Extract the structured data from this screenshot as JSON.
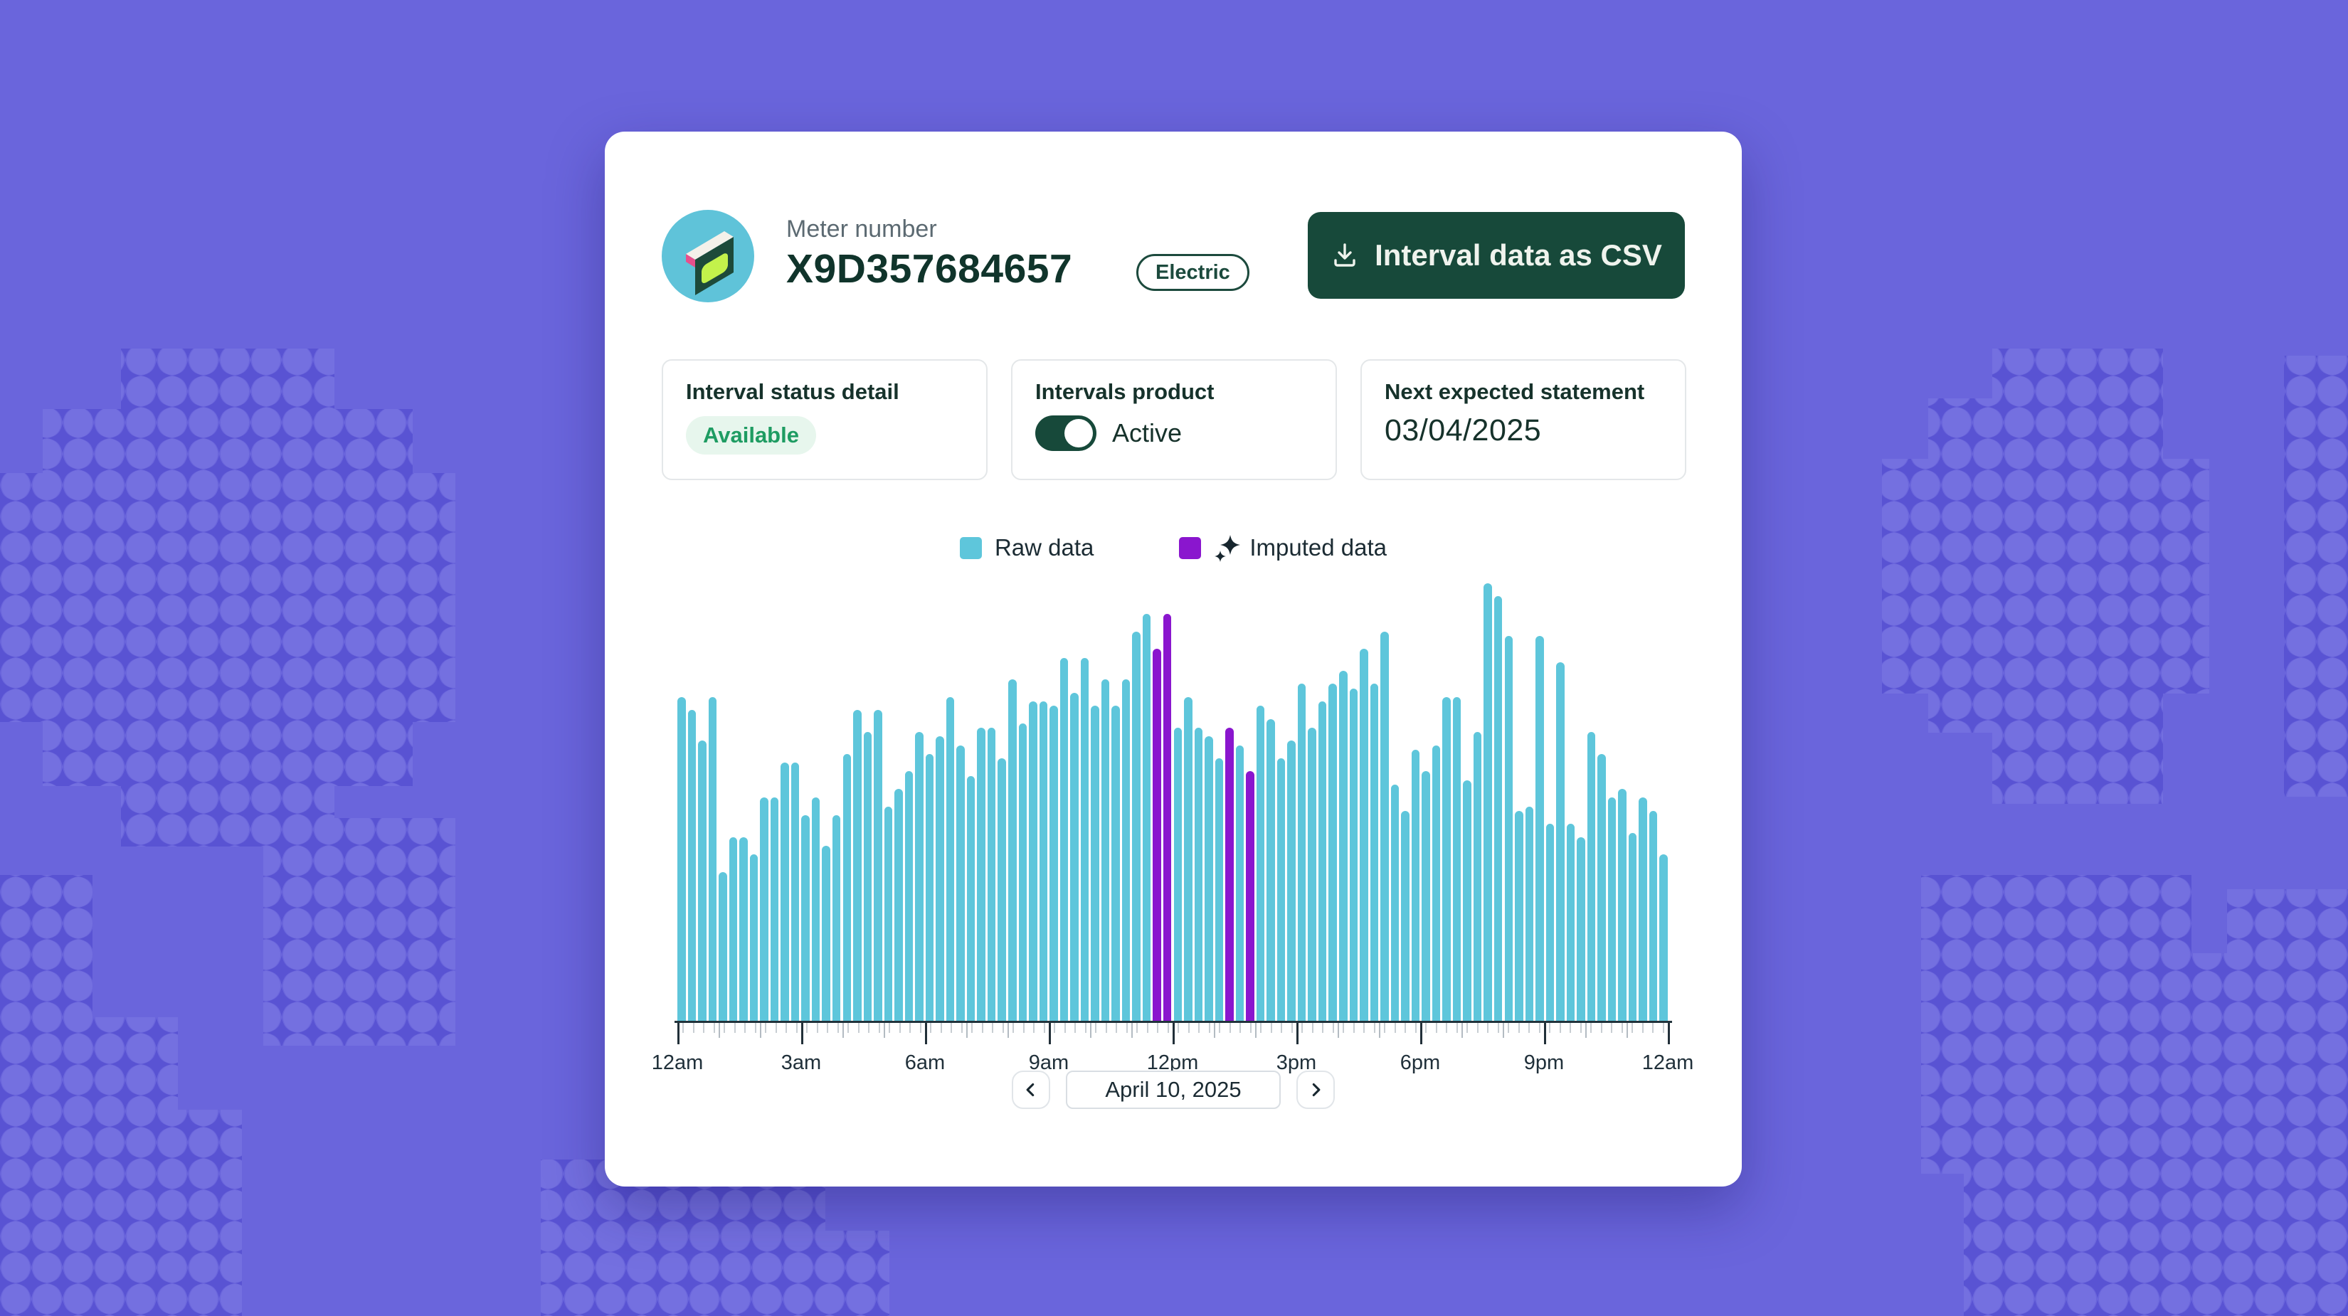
{
  "header": {
    "label": "Meter number",
    "meter_number": "X9D357684657",
    "badge": "Electric",
    "download_button": "Interval data as CSV"
  },
  "info_cards": {
    "status": {
      "title": "Interval status detail",
      "value": "Available"
    },
    "product": {
      "title": "Intervals product",
      "value": "Active",
      "toggle_state": "on"
    },
    "statement": {
      "title": "Next expected statement",
      "value": "03/04/2025"
    }
  },
  "legend": {
    "raw": "Raw data",
    "imputed": "Imputed data"
  },
  "nav": {
    "date": "April 10, 2025"
  },
  "colors": {
    "background": "#6A65DC",
    "raw": "#5EC6DB",
    "imputed": "#8A16CE",
    "accent_green": "#17493A",
    "status_green": "#1E9C62"
  },
  "chart_data": {
    "type": "bar",
    "title": "",
    "xlabel": "",
    "ylabel": "",
    "interval_minutes": 15,
    "x_range": [
      "12am",
      "12am next day"
    ],
    "x_tick_labels": [
      "12am",
      "3am",
      "6am",
      "9am",
      "12pm",
      "3pm",
      "6pm",
      "9pm",
      "12am"
    ],
    "unit": "relative height, % of tallest bar (no y-axis shown)",
    "values": [
      74,
      71,
      64,
      74,
      34,
      42,
      42,
      38,
      51,
      51,
      59,
      59,
      47,
      51,
      40,
      47,
      61,
      71,
      66,
      71,
      49,
      53,
      57,
      66,
      61,
      65,
      74,
      63,
      56,
      67,
      67,
      60,
      78,
      68,
      73,
      73,
      72,
      83,
      75,
      83,
      72,
      78,
      72,
      78,
      89,
      93,
      85,
      93,
      67,
      74,
      67,
      65,
      60,
      67,
      63,
      57,
      72,
      69,
      60,
      64,
      77,
      67,
      73,
      77,
      80,
      76,
      85,
      77,
      89,
      54,
      48,
      62,
      57,
      63,
      74,
      74,
      55,
      66,
      100,
      97,
      88,
      48,
      49,
      88,
      45,
      82,
      45,
      42,
      66,
      61,
      51,
      53,
      43,
      51,
      48,
      38
    ],
    "imputed_indices": [
      46,
      47,
      53,
      55
    ],
    "legend": [
      {
        "name": "Raw data",
        "color": "#5EC6DB"
      },
      {
        "name": "Imputed data",
        "color": "#8A16CE"
      }
    ],
    "grid": false,
    "legend_position": "top-center"
  }
}
